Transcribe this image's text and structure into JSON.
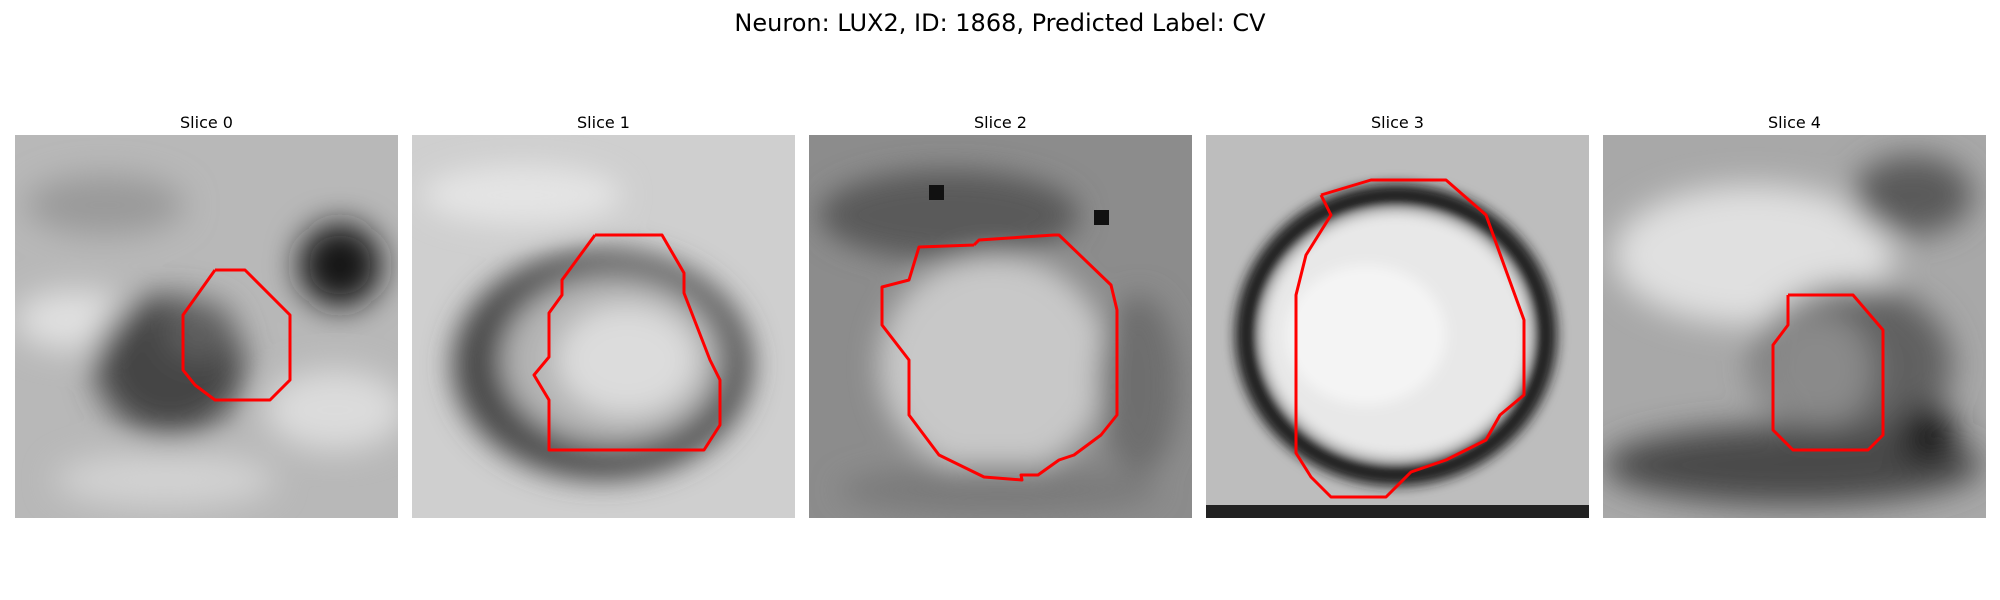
{
  "figure": {
    "title": "Neuron: LUX2, ID: 1868, Predicted Label: CV",
    "contour_color": "#ff0000"
  },
  "panels": [
    {
      "title": "Slice 0"
    },
    {
      "title": "Slice 1"
    },
    {
      "title": "Slice 2"
    },
    {
      "title": "Slice 3"
    },
    {
      "title": "Slice 4"
    }
  ]
}
